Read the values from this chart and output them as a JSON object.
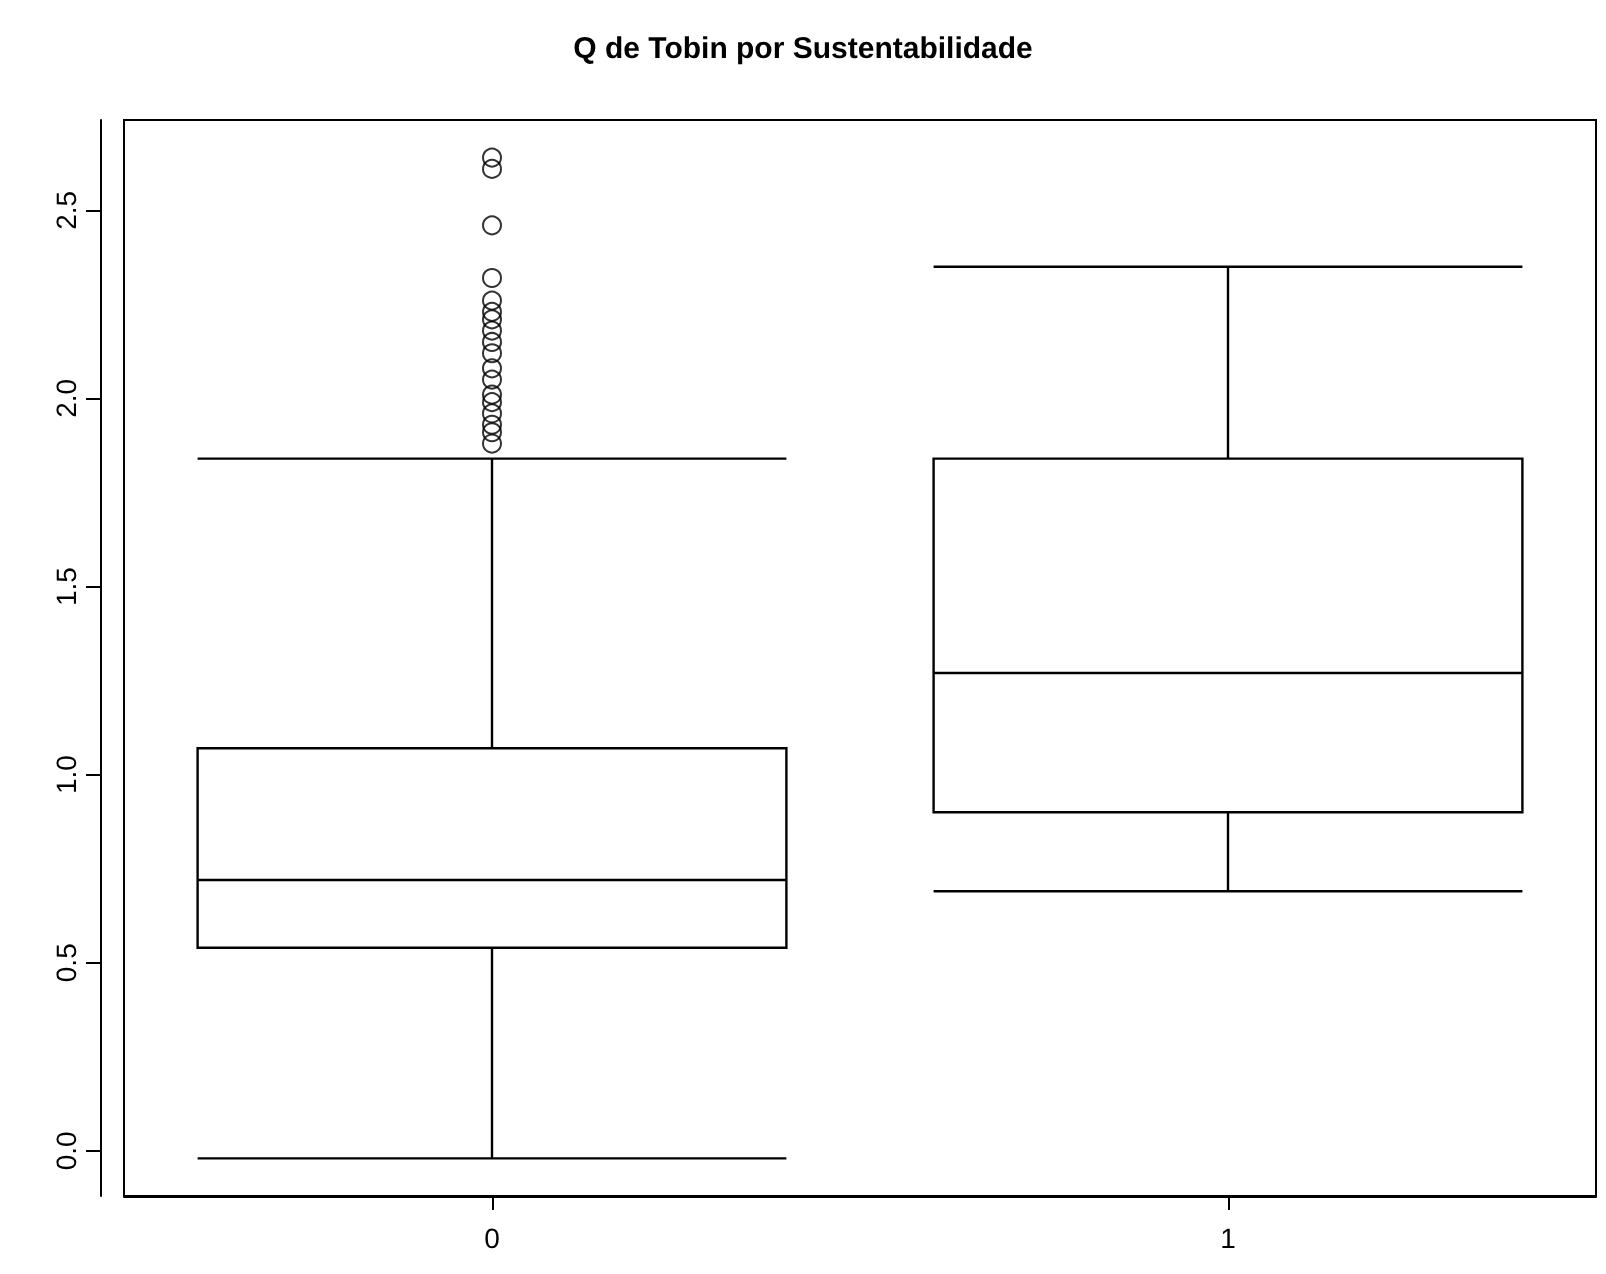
{
  "chart_data": {
    "type": "box",
    "title": "Q de Tobin por Sustentabilidade",
    "categories": [
      "0",
      "1"
    ],
    "boxes": [
      {
        "low": -0.02,
        "q1": 0.54,
        "median": 0.72,
        "q3": 1.07,
        "high": 1.84,
        "outliers": [
          2.64,
          2.61,
          2.46,
          2.32,
          2.26,
          2.23,
          2.21,
          2.18,
          2.15,
          2.12,
          2.08,
          2.05,
          2.01,
          1.99,
          1.96,
          1.93,
          1.91,
          1.88
        ]
      },
      {
        "low": 0.69,
        "q1": 0.9,
        "median": 1.27,
        "q3": 1.84,
        "high": 2.35
      }
    ],
    "ylim": [
      -0.12,
      2.74
    ],
    "yticks": [
      {
        "value": 0,
        "label": "0.0"
      },
      0.5,
      {
        "value": 1,
        "label": "1.0"
      },
      1.5,
      {
        "value": 2,
        "label": "2.0"
      },
      2.5
    ],
    "grid": false,
    "marker": "circle",
    "color": "#000000"
  }
}
